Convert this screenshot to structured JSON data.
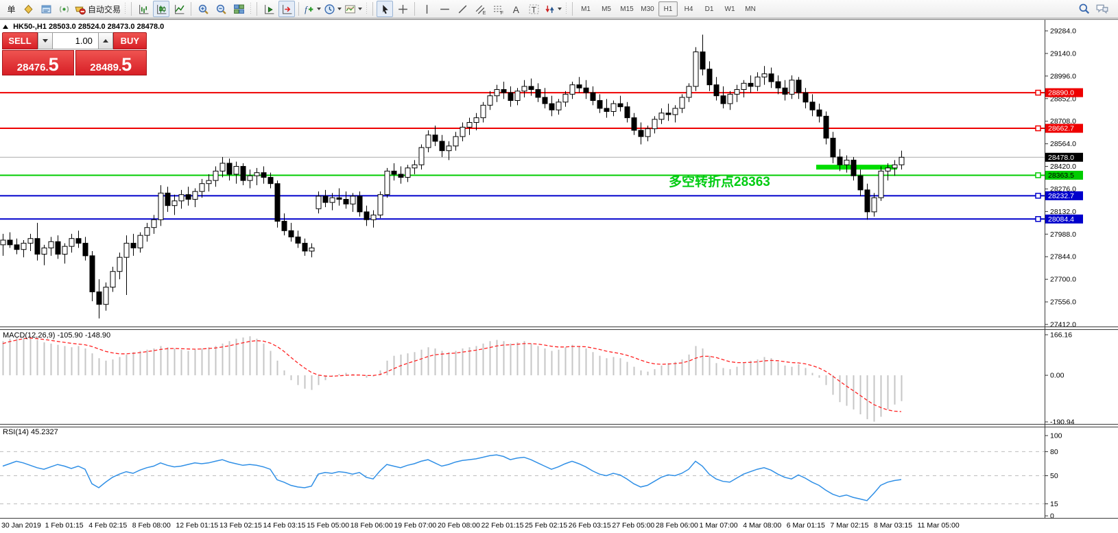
{
  "toolbar": {
    "order_label": "单",
    "auto_trading_label": "自动交易",
    "timeframes": [
      "M1",
      "M5",
      "M15",
      "M30",
      "H1",
      "H4",
      "D1",
      "W1",
      "MN"
    ],
    "active_timeframe": "H1"
  },
  "header": {
    "symbol_period": "HK50-,H1",
    "ohlc": "28503.0 28524.0 28473.0 28478.0"
  },
  "trade_panel": {
    "sell_label": "SELL",
    "buy_label": "BUY",
    "volume": "1.00",
    "sell_price": "28476",
    "sell_dot": ".",
    "sell_price_big": "5",
    "buy_price": "28489",
    "buy_dot": ".",
    "buy_price_big": "5"
  },
  "annotation": {
    "text": "多空转折点28363",
    "color": "#00cc11"
  },
  "chart_data": [
    {
      "type": "candlestick",
      "symbol": "HK50-",
      "timeframe": "H1",
      "ylim": [
        27412,
        29284
      ],
      "y_ticks": [
        "29284.0",
        "29140.0",
        "28996.0",
        "28852.0",
        "28708.0",
        "28564.0",
        "28420.0",
        "28276.0",
        "28132.0",
        "27988.0",
        "27844.0",
        "27700.0",
        "27556.0",
        "27412.0"
      ],
      "x_labels": [
        "30 Jan 2019",
        "1 Feb 01:15",
        "4 Feb 02:15",
        "8 Feb 08:00",
        "12 Feb 01:15",
        "13 Feb 02:15",
        "14 Feb 03:15",
        "15 Feb 05:00",
        "18 Feb 06:00",
        "19 Feb 07:00",
        "20 Feb 08:00",
        "22 Feb 01:15",
        "25 Feb 02:15",
        "26 Feb 03:15",
        "27 Feb 05:00",
        "28 Feb 06:00",
        "1 Mar 07:00",
        "4 Mar 08:00",
        "6 Mar 01:15",
        "7 Mar 02:15",
        "8 Mar 03:15",
        "11 Mar 05:00"
      ],
      "levels": [
        {
          "price": 28890.0,
          "label": "28890.0",
          "color": "#ee0000",
          "text": "#ffffff"
        },
        {
          "price": 28662.7,
          "label": "28662.7",
          "color": "#ee0000",
          "text": "#ffffff"
        },
        {
          "price": 28363.5,
          "label": "28363.5",
          "color": "#00cc00",
          "text": "#000000"
        },
        {
          "price": 28232.7,
          "label": "28232.7",
          "color": "#0000cc",
          "text": "#ffffff"
        },
        {
          "price": 28084.4,
          "label": "28084.4",
          "color": "#0000cc",
          "text": "#ffffff"
        }
      ],
      "current_price": {
        "price": 28478.0,
        "label": "28478.0",
        "line_color": "#aaaaaa",
        "bg": "#000000",
        "text": "#ffffff"
      },
      "highlight": {
        "price": 28415,
        "from_index": 119,
        "to_index": 130,
        "color": "#00dd00"
      },
      "candles": [
        [
          27920,
          27990,
          27850,
          27950
        ],
        [
          27950,
          28000,
          27900,
          27920
        ],
        [
          27920,
          27960,
          27860,
          27890
        ],
        [
          27890,
          27950,
          27840,
          27930
        ],
        [
          27930,
          27990,
          27880,
          27960
        ],
        [
          27960,
          28060,
          27820,
          27860
        ],
        [
          27860,
          27920,
          27790,
          27900
        ],
        [
          27900,
          27970,
          27850,
          27940
        ],
        [
          27940,
          27980,
          27830,
          27860
        ],
        [
          27860,
          27930,
          27800,
          27910
        ],
        [
          27910,
          27990,
          27870,
          27960
        ],
        [
          27960,
          28010,
          27900,
          27930
        ],
        [
          27930,
          27970,
          27820,
          27850
        ],
        [
          27850,
          27880,
          27560,
          27620
        ],
        [
          27620,
          27700,
          27450,
          27540
        ],
        [
          27540,
          27680,
          27500,
          27650
        ],
        [
          27650,
          27780,
          27620,
          27750
        ],
        [
          27750,
          27870,
          27700,
          27840
        ],
        [
          27840,
          27980,
          27600,
          27930
        ],
        [
          27930,
          27990,
          27850,
          27900
        ],
        [
          27900,
          28000,
          27870,
          27980
        ],
        [
          27980,
          28060,
          27940,
          28030
        ],
        [
          28030,
          28110,
          27990,
          28080
        ],
        [
          28080,
          28300,
          28040,
          28250
        ],
        [
          28250,
          28290,
          28130,
          28170
        ],
        [
          28170,
          28240,
          28110,
          28200
        ],
        [
          28200,
          28270,
          28150,
          28240
        ],
        [
          28240,
          28290,
          28170,
          28210
        ],
        [
          28210,
          28280,
          28160,
          28260
        ],
        [
          28260,
          28340,
          28220,
          28310
        ],
        [
          28310,
          28370,
          28260,
          28330
        ],
        [
          28330,
          28420,
          28290,
          28390
        ],
        [
          28390,
          28480,
          28350,
          28440
        ],
        [
          28440,
          28470,
          28330,
          28370
        ],
        [
          28370,
          28450,
          28310,
          28420
        ],
        [
          28420,
          28440,
          28300,
          28330
        ],
        [
          28330,
          28400,
          28280,
          28360
        ],
        [
          28360,
          28410,
          28300,
          28380
        ],
        [
          28380,
          28420,
          28310,
          28350
        ],
        [
          28350,
          28380,
          28280,
          28310
        ],
        [
          28310,
          28330,
          28030,
          28070
        ],
        [
          28070,
          28120,
          27980,
          28010
        ],
        [
          28010,
          28060,
          27940,
          27970
        ],
        [
          27970,
          28010,
          27900,
          27930
        ],
        [
          27930,
          27960,
          27850,
          27880
        ],
        [
          27880,
          27930,
          27840,
          27900
        ],
        [
          28150,
          28260,
          28120,
          28230
        ],
        [
          28230,
          28270,
          28160,
          28190
        ],
        [
          28190,
          28250,
          28140,
          28220
        ],
        [
          28220,
          28280,
          28170,
          28210
        ],
        [
          28210,
          28260,
          28150,
          28180
        ],
        [
          28180,
          28250,
          28130,
          28230
        ],
        [
          28230,
          28260,
          28100,
          28130
        ],
        [
          28130,
          28170,
          28040,
          28080
        ],
        [
          28080,
          28140,
          28030,
          28110
        ],
        [
          28110,
          28260,
          28090,
          28240
        ],
        [
          28240,
          28410,
          28220,
          28390
        ],
        [
          28390,
          28440,
          28330,
          28370
        ],
        [
          28370,
          28420,
          28310,
          28350
        ],
        [
          28350,
          28430,
          28320,
          28410
        ],
        [
          28410,
          28460,
          28370,
          28430
        ],
        [
          28430,
          28560,
          28400,
          28540
        ],
        [
          28540,
          28650,
          28510,
          28620
        ],
        [
          28620,
          28680,
          28550,
          28580
        ],
        [
          28580,
          28620,
          28480,
          28520
        ],
        [
          28520,
          28580,
          28460,
          28550
        ],
        [
          28550,
          28640,
          28520,
          28610
        ],
        [
          28610,
          28700,
          28580,
          28670
        ],
        [
          28670,
          28730,
          28620,
          28700
        ],
        [
          28700,
          28760,
          28650,
          28730
        ],
        [
          28730,
          28830,
          28700,
          28810
        ],
        [
          28810,
          28900,
          28780,
          28870
        ],
        [
          28870,
          28940,
          28830,
          28910
        ],
        [
          28910,
          28960,
          28850,
          28890
        ],
        [
          28890,
          28930,
          28800,
          28840
        ],
        [
          28840,
          28920,
          28810,
          28900
        ],
        [
          28900,
          28970,
          28860,
          28930
        ],
        [
          28930,
          28980,
          28870,
          28910
        ],
        [
          28910,
          28950,
          28830,
          28860
        ],
        [
          28860,
          28920,
          28790,
          28820
        ],
        [
          28820,
          28870,
          28740,
          28780
        ],
        [
          28780,
          28850,
          28750,
          28830
        ],
        [
          28830,
          28900,
          28800,
          28880
        ],
        [
          28880,
          28960,
          28850,
          28940
        ],
        [
          28940,
          28990,
          28890,
          28920
        ],
        [
          28920,
          28970,
          28850,
          28890
        ],
        [
          28890,
          28930,
          28810,
          28840
        ],
        [
          28840,
          28880,
          28760,
          28790
        ],
        [
          28790,
          28850,
          28730,
          28770
        ],
        [
          28770,
          28840,
          28740,
          28820
        ],
        [
          28820,
          28870,
          28770,
          28800
        ],
        [
          28800,
          28830,
          28700,
          28730
        ],
        [
          28730,
          28760,
          28620,
          28650
        ],
        [
          28650,
          28700,
          28560,
          28610
        ],
        [
          28610,
          28680,
          28580,
          28660
        ],
        [
          28660,
          28740,
          28630,
          28720
        ],
        [
          28720,
          28790,
          28690,
          28760
        ],
        [
          28760,
          28820,
          28710,
          28750
        ],
        [
          28750,
          28810,
          28700,
          28790
        ],
        [
          28790,
          28880,
          28760,
          28860
        ],
        [
          28860,
          28950,
          28830,
          28930
        ],
        [
          28930,
          29180,
          28900,
          29150
        ],
        [
          29150,
          29260,
          29000,
          29040
        ],
        [
          29040,
          29090,
          28900,
          28940
        ],
        [
          28940,
          28990,
          28840,
          28870
        ],
        [
          28870,
          28930,
          28790,
          28820
        ],
        [
          28820,
          28900,
          28780,
          28880
        ],
        [
          28880,
          28940,
          28830,
          28910
        ],
        [
          28910,
          28970,
          28860,
          28950
        ],
        [
          28950,
          29000,
          28890,
          28930
        ],
        [
          28930,
          29020,
          28900,
          28990
        ],
        [
          28990,
          29060,
          28940,
          29010
        ],
        [
          29010,
          29050,
          28920,
          28960
        ],
        [
          28960,
          29000,
          28880,
          28920
        ],
        [
          28920,
          28970,
          28840,
          28880
        ],
        [
          28880,
          29000,
          28850,
          28970
        ],
        [
          28970,
          28990,
          28850,
          28890
        ],
        [
          28890,
          28920,
          28790,
          28830
        ],
        [
          28830,
          28880,
          28740,
          28780
        ],
        [
          28780,
          28820,
          28700,
          28740
        ],
        [
          28740,
          28770,
          28560,
          28600
        ],
        [
          28600,
          28640,
          28440,
          28480
        ],
        [
          28480,
          28530,
          28390,
          28430
        ],
        [
          28430,
          28490,
          28380,
          28460
        ],
        [
          28460,
          28480,
          28330,
          28360
        ],
        [
          28360,
          28400,
          28230,
          28270
        ],
        [
          28270,
          28310,
          28080,
          28130
        ],
        [
          28130,
          28250,
          28100,
          28220
        ],
        [
          28220,
          28420,
          28200,
          28390
        ],
        [
          28390,
          28440,
          28330,
          28410
        ],
        [
          28410,
          28460,
          28360,
          28430
        ],
        [
          28430,
          28520,
          28400,
          28478
        ]
      ]
    },
    {
      "type": "macd",
      "label": "MACD(12,26,9) -105.90 -148.90",
      "ylim": [
        -190.94,
        166.16
      ],
      "y_ticks": [
        "166.16",
        "0.00",
        "-190.94"
      ],
      "hist_color": "#c6c6c6",
      "signal_color": "#ff2222",
      "histogram": [
        140,
        150,
        155,
        160,
        150,
        145,
        135,
        130,
        125,
        120,
        115,
        120,
        110,
        90,
        70,
        60,
        65,
        75,
        85,
        95,
        100,
        105,
        110,
        120,
        115,
        110,
        105,
        100,
        105,
        110,
        115,
        120,
        130,
        140,
        150,
        155,
        160,
        150,
        130,
        100,
        60,
        20,
        -20,
        -40,
        -55,
        -60,
        -40,
        -20,
        -5,
        5,
        10,
        5,
        0,
        -10,
        -5,
        20,
        60,
        80,
        85,
        90,
        95,
        105,
        115,
        110,
        100,
        95,
        100,
        110,
        115,
        120,
        130,
        140,
        145,
        140,
        130,
        135,
        140,
        130,
        120,
        110,
        100,
        105,
        115,
        125,
        120,
        110,
        95,
        80,
        70,
        75,
        70,
        55,
        35,
        20,
        15,
        25,
        40,
        50,
        55,
        65,
        85,
        120,
        110,
        80,
        50,
        30,
        25,
        35,
        50,
        60,
        65,
        75,
        70,
        55,
        40,
        35,
        45,
        30,
        10,
        -10,
        -40,
        -80,
        -110,
        -125,
        -140,
        -160,
        -180,
        -190,
        -170,
        -140,
        -120,
        -105.9
      ],
      "signal": [
        130,
        138,
        144,
        150,
        152,
        150,
        147,
        143,
        139,
        135,
        131,
        128,
        125,
        118,
        108,
        98,
        92,
        88,
        88,
        90,
        93,
        97,
        101,
        106,
        109,
        110,
        109,
        108,
        107,
        108,
        110,
        112,
        116,
        121,
        127,
        133,
        139,
        142,
        140,
        132,
        118,
        98,
        74,
        51,
        30,
        12,
        1,
        -3,
        -4,
        -2,
        0,
        1,
        1,
        -1,
        -1,
        3,
        14,
        27,
        39,
        49,
        58,
        67,
        77,
        84,
        87,
        89,
        91,
        95,
        99,
        103,
        108,
        114,
        120,
        124,
        125,
        127,
        130,
        130,
        128,
        124,
        119,
        116,
        116,
        118,
        118,
        117,
        112,
        106,
        99,
        94,
        89,
        82,
        73,
        62,
        53,
        47,
        45,
        46,
        48,
        51,
        58,
        70,
        78,
        78,
        73,
        64,
        56,
        52,
        52,
        53,
        55,
        59,
        61,
        60,
        56,
        52,
        51,
        47,
        40,
        30,
        16,
        -3,
        -24,
        -44,
        -63,
        -82,
        -102,
        -120,
        -132,
        -142,
        -147,
        -148.9
      ]
    },
    {
      "type": "rsi",
      "label": "RSI(14) 45.2327",
      "ylim": [
        0,
        100
      ],
      "y_ticks": [
        "100",
        "80",
        "50",
        "15",
        "0"
      ],
      "levels": [
        80,
        50,
        15
      ],
      "line_color": "#2f8fe6",
      "values": [
        62,
        65,
        68,
        66,
        63,
        60,
        58,
        61,
        64,
        62,
        59,
        62,
        58,
        40,
        35,
        42,
        48,
        52,
        55,
        53,
        57,
        60,
        62,
        66,
        63,
        61,
        62,
        64,
        66,
        65,
        66,
        68,
        70,
        67,
        65,
        63,
        64,
        63,
        61,
        58,
        45,
        42,
        38,
        36,
        35,
        37,
        52,
        54,
        53,
        55,
        54,
        52,
        54,
        48,
        46,
        56,
        64,
        62,
        60,
        63,
        65,
        68,
        70,
        66,
        62,
        64,
        67,
        69,
        70,
        71,
        73,
        75,
        76,
        74,
        70,
        72,
        73,
        70,
        66,
        62,
        58,
        61,
        65,
        68,
        65,
        61,
        56,
        52,
        50,
        53,
        51,
        46,
        40,
        36,
        38,
        43,
        48,
        51,
        50,
        53,
        58,
        68,
        62,
        52,
        46,
        43,
        42,
        47,
        52,
        55,
        58,
        60,
        57,
        52,
        48,
        46,
        51,
        47,
        42,
        38,
        32,
        27,
        24,
        26,
        23,
        21,
        19,
        28,
        38,
        42,
        44,
        45.23
      ]
    }
  ]
}
